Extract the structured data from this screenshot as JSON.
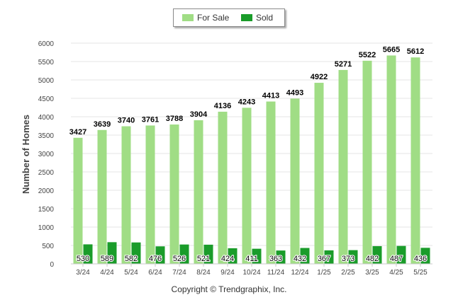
{
  "legend": {
    "for_sale_label": "For Sale",
    "sold_label": "Sold"
  },
  "copyright": "Copyright © Trendgraphix, Inc.",
  "colors": {
    "for_sale": "#a0dd85",
    "sold": "#1a9c2a"
  },
  "chart_data": {
    "type": "bar",
    "title": "",
    "xlabel": "",
    "ylabel": "Number of Homes",
    "ylim": [
      0,
      6000
    ],
    "yticks": [
      0,
      500,
      1000,
      1500,
      2000,
      2500,
      3000,
      3500,
      4000,
      4500,
      5000,
      5500,
      6000
    ],
    "grid": true,
    "legend_position": "top-center",
    "categories": [
      "3/24",
      "4/24",
      "5/24",
      "6/24",
      "7/24",
      "8/24",
      "9/24",
      "10/24",
      "11/24",
      "12/24",
      "1/25",
      "2/25",
      "3/25",
      "4/25",
      "5/25"
    ],
    "series": [
      {
        "name": "For Sale",
        "values": [
          3427,
          3639,
          3740,
          3761,
          3788,
          3904,
          4136,
          4243,
          4413,
          4493,
          4922,
          5271,
          5522,
          5665,
          5612
        ]
      },
      {
        "name": "Sold",
        "values": [
          530,
          589,
          582,
          476,
          526,
          521,
          424,
          411,
          363,
          432,
          367,
          373,
          482,
          487,
          436
        ]
      }
    ]
  }
}
